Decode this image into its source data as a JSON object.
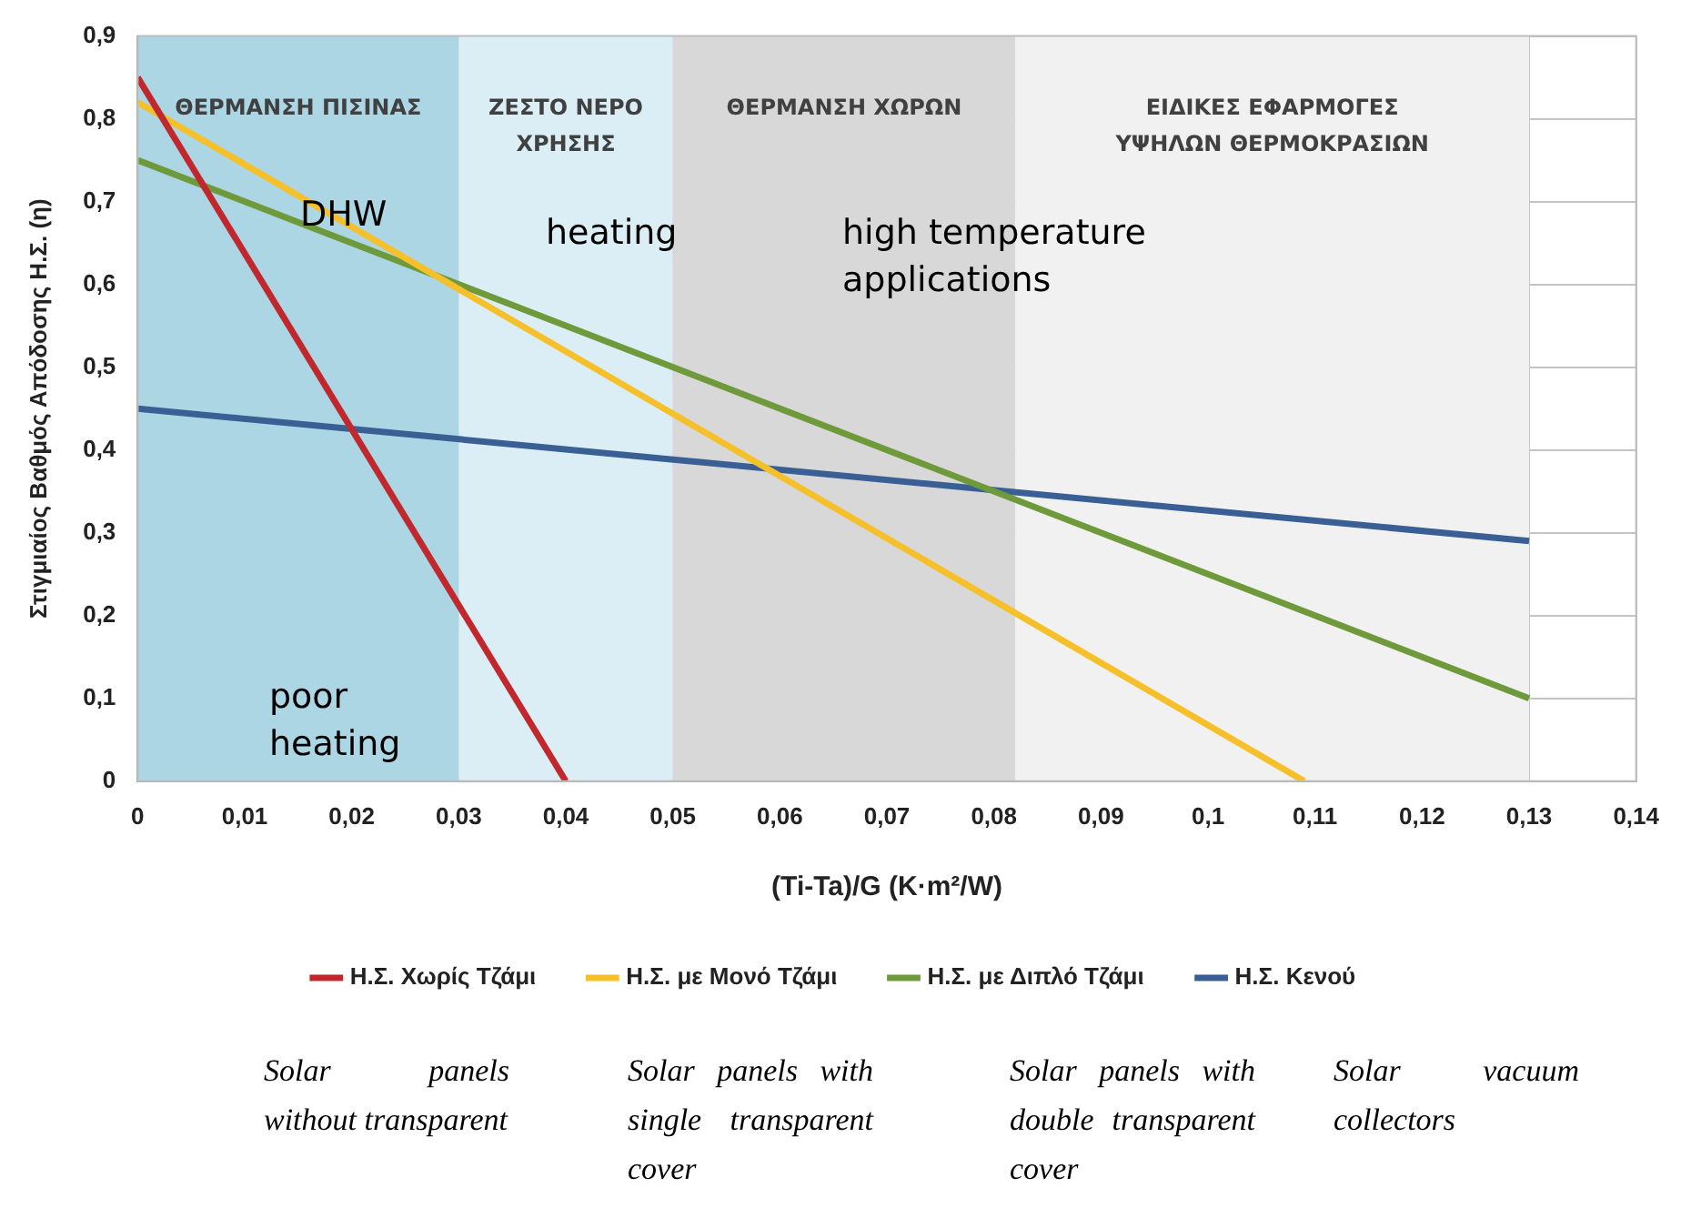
{
  "chart_data": {
    "type": "line",
    "xlabel": "(Ti-Ta)/G (K·m²/W)",
    "ylabel": "Στιγμιαίος Βαθμός Απόδοσης Η.Σ. (η)",
    "xlim": [
      0,
      0.14
    ],
    "ylim": [
      0,
      0.9
    ],
    "xticks": [
      0,
      {
        "value": 0.01,
        "label": "0,01"
      },
      {
        "value": 0.02,
        "label": "0,02"
      },
      {
        "value": 0.03,
        "label": "0,03"
      },
      {
        "value": 0.04,
        "label": "0,04"
      },
      {
        "value": 0.05,
        "label": "0,05"
      },
      {
        "value": 0.06,
        "label": "0,06"
      },
      {
        "value": 0.07,
        "label": "0,07"
      },
      {
        "value": 0.08,
        "label": "0,08"
      },
      {
        "value": 0.09,
        "label": "0,09"
      },
      {
        "value": 0.1,
        "label": "0,1"
      },
      {
        "value": 0.11,
        "label": "0,11"
      },
      {
        "value": 0.12,
        "label": "0,12"
      },
      {
        "value": 0.13,
        "label": "0,13"
      },
      {
        "value": 0.14,
        "label": "0,14"
      }
    ],
    "yticks": [
      0,
      {
        "value": 0.1,
        "label": "0,1"
      },
      {
        "value": 0.2,
        "label": "0,2"
      },
      {
        "value": 0.3,
        "label": "0,3"
      },
      {
        "value": 0.4,
        "label": "0,4"
      },
      {
        "value": 0.5,
        "label": "0,5"
      },
      {
        "value": 0.6,
        "label": "0,6"
      },
      {
        "value": 0.7,
        "label": "0,7"
      },
      {
        "value": 0.8,
        "label": "0,8"
      },
      {
        "value": 0.9,
        "label": "0,9"
      }
    ],
    "grid": true,
    "legend": "bottom",
    "marker": "none",
    "line_style": "solid",
    "series": [
      {
        "name": "Η.Σ. Χωρίς Τζάμι",
        "color": "#c0282d",
        "x": [
          0,
          0.04
        ],
        "values": [
          0.85,
          0
        ]
      },
      {
        "name": "Η.Σ. με Μονό Τζάμι",
        "color": "#f5c02a",
        "x": [
          0,
          0.109
        ],
        "values": [
          0.82,
          0
        ]
      },
      {
        "name": "Η.Σ. με Διπλό Τζάμι",
        "color": "#6f9a3c",
        "x": [
          0,
          0.13
        ],
        "values": [
          0.75,
          0.1
        ]
      },
      {
        "name": "Η.Σ. Κενού",
        "color": "#3a5f95",
        "x": [
          0,
          0.13
        ],
        "values": [
          0.45,
          0.29
        ]
      }
    ],
    "bands": [
      {
        "axis": "x",
        "from": 0,
        "to": 0.03,
        "label": "ΘΕΡΜΑΝΣΗ ΠΙΣΙΝΑΣ",
        "color": "#acd6e4"
      },
      {
        "axis": "x",
        "from": 0.03,
        "to": 0.05,
        "label": "ΖΕΣΤΟ ΝΕΡΟ ΧΡΗΣΗΣ",
        "color": "#dbeef5"
      },
      {
        "axis": "x",
        "from": 0.05,
        "to": 0.082,
        "label": "ΘΕΡΜΑΝΣΗ ΧΩΡΩΝ",
        "color": "#d8d8d8"
      },
      {
        "axis": "x",
        "from": 0.082,
        "to": 0.13,
        "label": "ΕΙΔΙΚΕΣ ΕΦΑΡΜΟΓΕΣ ΥΨΗΛΩΝ ΘΕΡΜΟΚΡΑΣΙΩΝ",
        "color": "#f1f1f1"
      }
    ],
    "annotations": [
      "DHW",
      "heating",
      "high temperature applications",
      "poor heating",
      "Solar panels without transparent",
      "Solar panels with single transparent cover",
      "Solar panels with double transparent cover",
      "Solar vacuum collectors"
    ]
  }
}
